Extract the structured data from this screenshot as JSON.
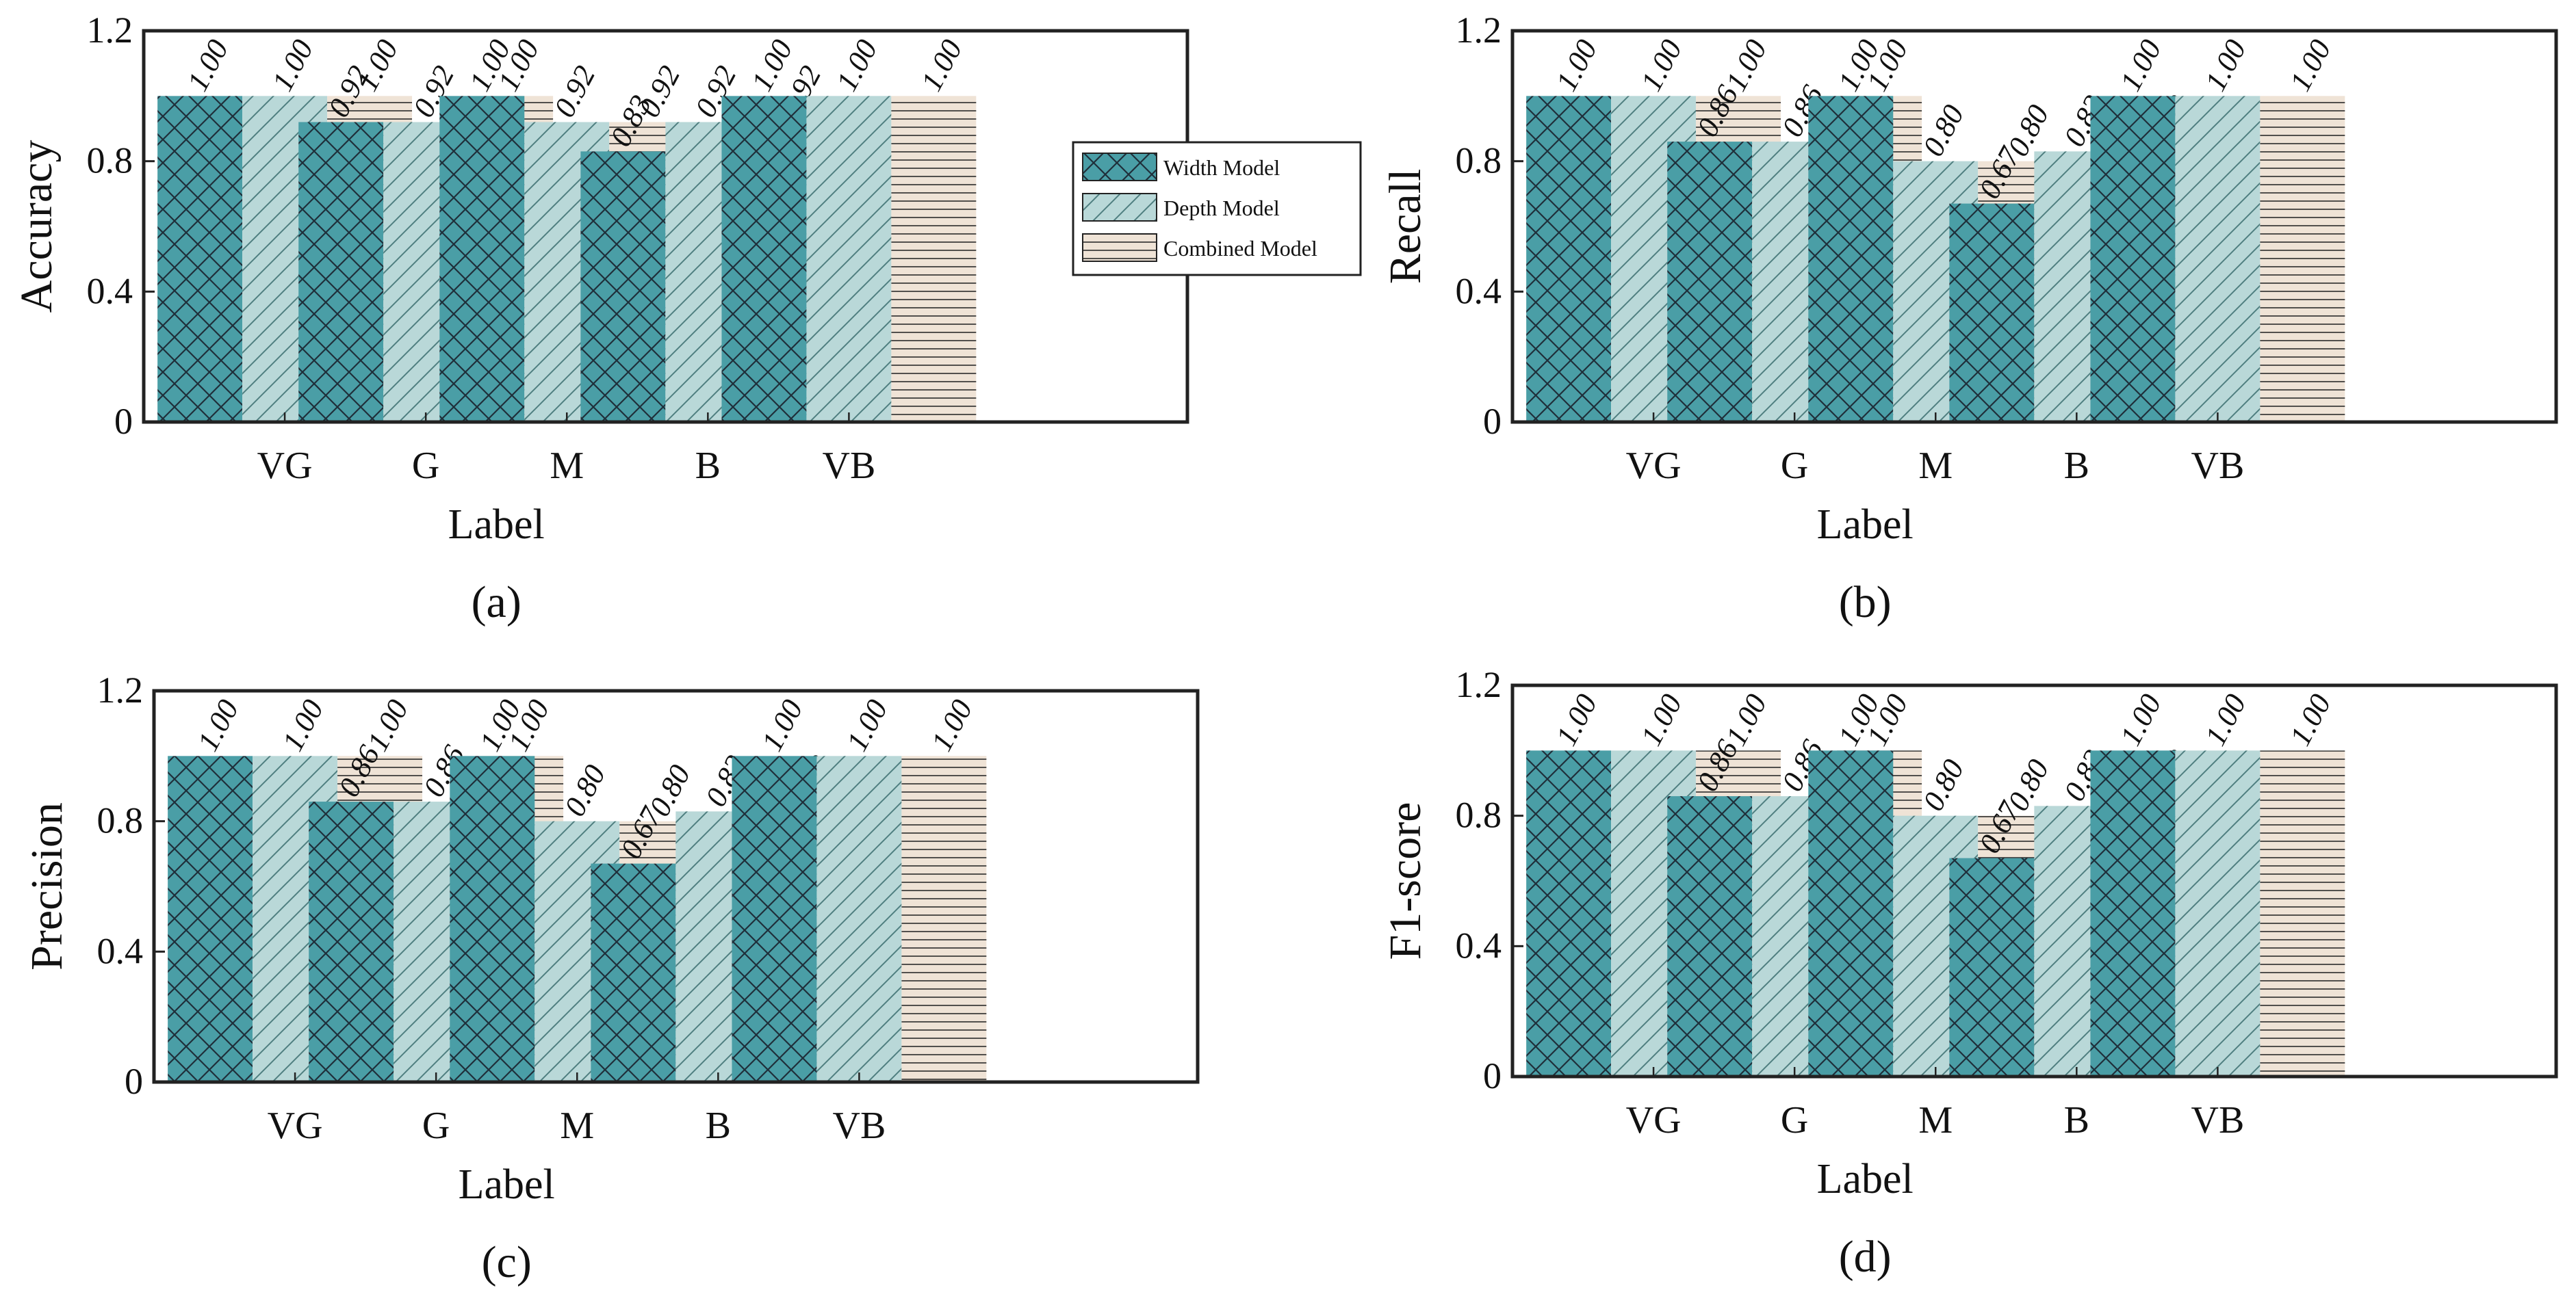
{
  "figure": {
    "legend": {
      "entries": [
        "Width Model",
        "Depth Model",
        "Combined Model"
      ],
      "placement": "right of panel (a)"
    }
  },
  "colors": {
    "width": "#4a9ea6",
    "depth": "#b9d8d8",
    "combined": "#efe3d6",
    "width_hatch": "#1f2f3a",
    "depth_hatch": "#4f7f80",
    "combined_hatch": "#2b2b2b",
    "axis": "#222222"
  },
  "chart_data": [
    {
      "type": "bar",
      "panel_label": "(a)",
      "categories": [
        "VG",
        "G",
        "M",
        "B",
        "VB"
      ],
      "series": [
        {
          "name": "Width Model",
          "values": [
            1.0,
            0.92,
            1.0,
            0.83,
            1.0
          ],
          "labels": [
            "1.00",
            "0.92",
            "1.00",
            "0.83",
            "1.00"
          ]
        },
        {
          "name": "Depth Model",
          "values": [
            1.0,
            0.92,
            0.92,
            0.92,
            1.0
          ],
          "labels": [
            "1.00",
            "0.92",
            "0.92",
            "0.92",
            "1.00"
          ]
        },
        {
          "name": "Combined Model",
          "values": [
            1.0,
            1.0,
            0.92,
            0.92,
            1.0
          ],
          "labels": [
            "1.00",
            "1.00",
            "0.92",
            "0.92",
            "1.00"
          ]
        }
      ],
      "xlabel": "Label",
      "ylabel": "Accuracy",
      "ylim": [
        0,
        1.2
      ],
      "yticks": [
        "0",
        "0.4",
        "0.8",
        "1.2"
      ],
      "xlim": [
        0,
        7.4
      ]
    },
    {
      "type": "bar",
      "panel_label": "(b)",
      "categories": [
        "VG",
        "G",
        "M",
        "B",
        "VB"
      ],
      "series": [
        {
          "name": "Width Model",
          "values": [
            1.0,
            0.86,
            1.0,
            0.67,
            1.0
          ],
          "labels": [
            "1.00",
            "0.86",
            "1.00",
            "0.67",
            "1.00"
          ]
        },
        {
          "name": "Depth Model",
          "values": [
            1.0,
            0.86,
            0.8,
            0.83,
            1.0
          ],
          "labels": [
            "1.00",
            "0.86",
            "0.80",
            "0.83",
            "1.00"
          ]
        },
        {
          "name": "Combined Model",
          "values": [
            1.0,
            1.0,
            0.8,
            0.83,
            1.0
          ],
          "labels": [
            "1.00",
            "1.00",
            "0.80",
            "0.83",
            "1.00"
          ]
        }
      ],
      "xlabel": "Label",
      "ylabel": "Recall",
      "ylim": [
        0,
        1.2
      ],
      "yticks": [
        "0",
        "0.4",
        "0.8",
        "1.2"
      ],
      "xlim": [
        0,
        7.4
      ]
    },
    {
      "type": "bar",
      "panel_label": "(c)",
      "categories": [
        "VG",
        "G",
        "M",
        "B",
        "VB"
      ],
      "series": [
        {
          "name": "Width Model",
          "values": [
            1.0,
            0.86,
            1.0,
            0.67,
            1.0
          ],
          "labels": [
            "1.00",
            "0.86",
            "1.00",
            "0.67",
            "1.00"
          ]
        },
        {
          "name": "Depth Model",
          "values": [
            1.0,
            0.86,
            0.8,
            0.83,
            1.0
          ],
          "labels": [
            "1.00",
            "0.86",
            "0.80",
            "0.83",
            "1.00"
          ]
        },
        {
          "name": "Combined Model",
          "values": [
            1.0,
            1.0,
            0.8,
            0.83,
            1.0
          ],
          "labels": [
            "1.00",
            "1.00",
            "0.80",
            "0.83",
            "1.00"
          ]
        }
      ],
      "xlabel": "Label",
      "ylabel": "Precision",
      "ylim": [
        0,
        1.2
      ],
      "yticks": [
        "0",
        "0.4",
        "0.8",
        "1.2"
      ],
      "xlim": [
        0,
        7.4
      ]
    },
    {
      "type": "bar",
      "panel_label": "(d)",
      "categories": [
        "VG",
        "G",
        "M",
        "B",
        "VB"
      ],
      "series": [
        {
          "name": "Width Model",
          "values": [
            1.0,
            0.86,
            1.0,
            0.67,
            1.0
          ],
          "labels": [
            "1.00",
            "0.86",
            "1.00",
            "0.67",
            "1.00"
          ]
        },
        {
          "name": "Depth Model",
          "values": [
            1.0,
            0.86,
            0.8,
            0.83,
            1.0
          ],
          "labels": [
            "1.00",
            "0.86",
            "0.80",
            "0.83",
            "1.00"
          ]
        },
        {
          "name": "Combined Model",
          "values": [
            1.0,
            1.0,
            0.8,
            0.83,
            1.0
          ],
          "labels": [
            "1.00",
            "1.00",
            "0.80",
            "0.83",
            "1.00"
          ]
        }
      ],
      "xlabel": "Label",
      "ylabel": "F1-score",
      "ylim": [
        0,
        1.2
      ],
      "yticks": [
        "0",
        "0.4",
        "0.8",
        "1.2"
      ],
      "xlim": [
        0,
        7.4
      ]
    }
  ]
}
